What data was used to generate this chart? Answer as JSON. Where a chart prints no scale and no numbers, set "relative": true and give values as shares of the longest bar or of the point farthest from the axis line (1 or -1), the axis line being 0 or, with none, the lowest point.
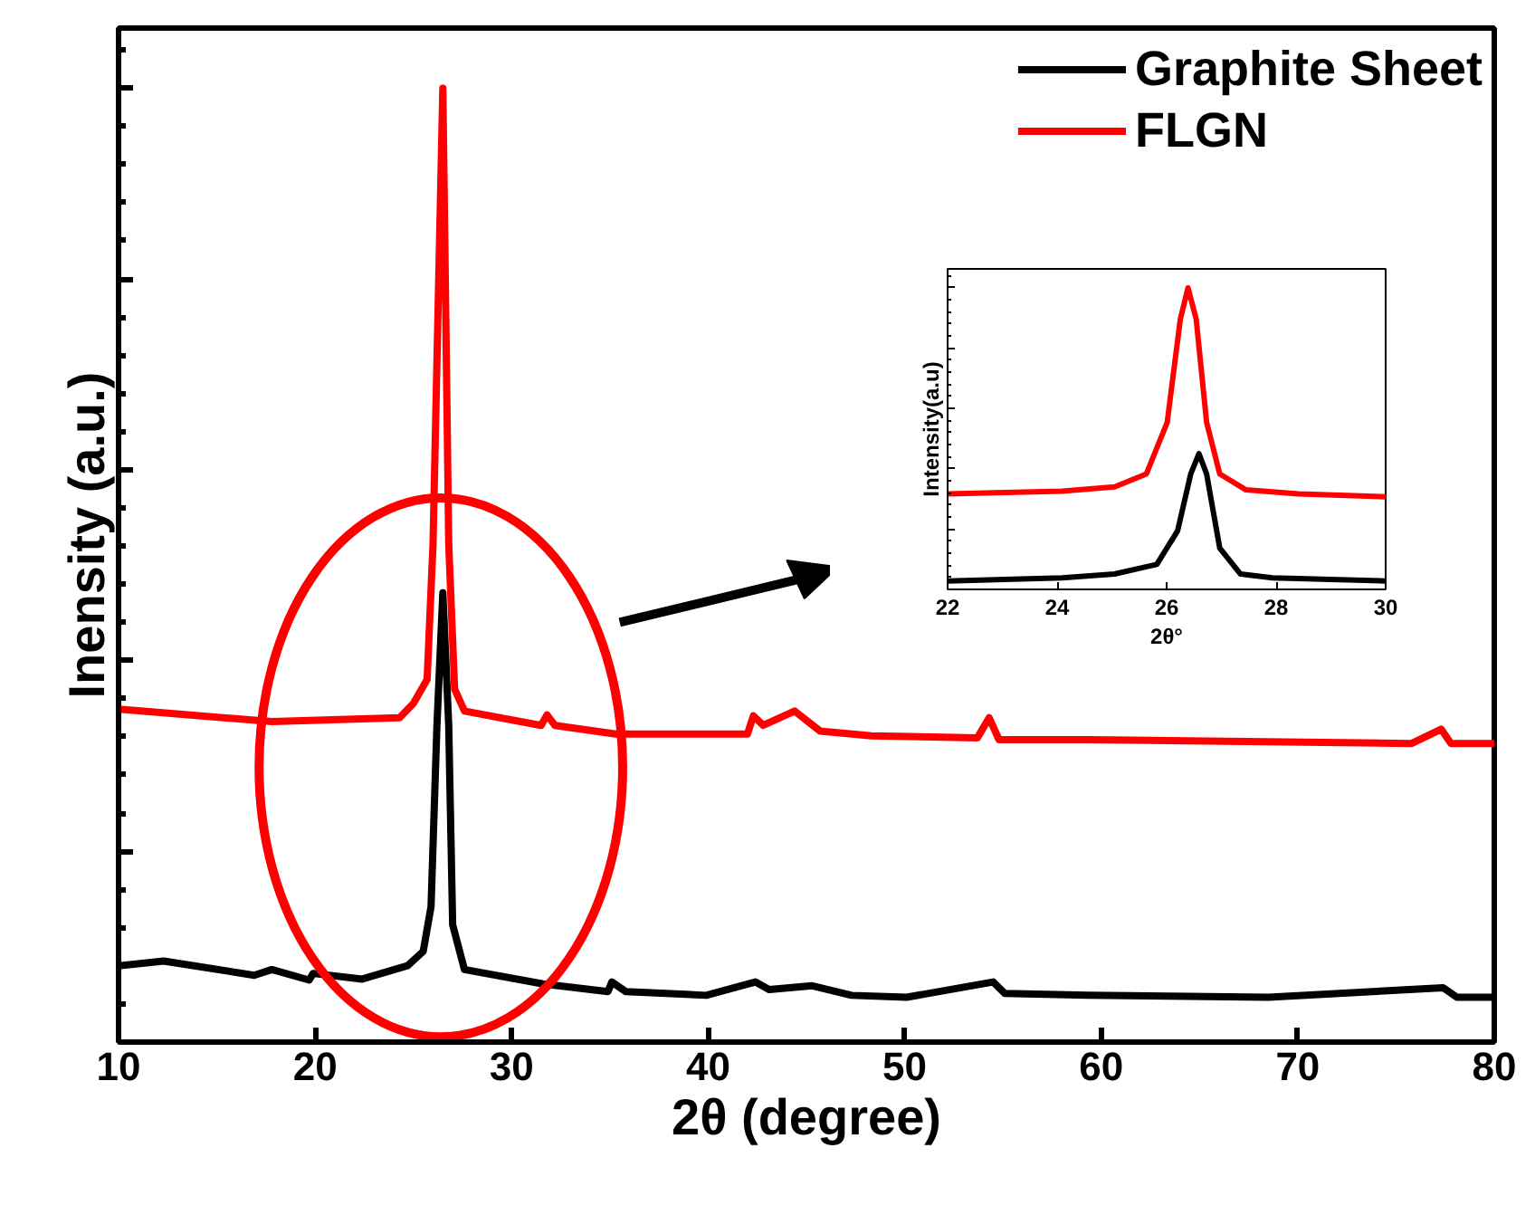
{
  "chart_data": [
    {
      "type": "line",
      "xlabel": "2θ (degree)",
      "ylabel": "Inensity (a.u.)",
      "relative": true,
      "xlim": [
        10,
        80
      ],
      "xticks": [
        10,
        20,
        30,
        40,
        50,
        60,
        70,
        80
      ],
      "tick_labels": "x",
      "legend": "top right",
      "line_style": "solid",
      "series": [
        {
          "name": "Graphite Sheet",
          "color": "#000000",
          "x": [
            10,
            12.3,
            16.9,
            17.8,
            19.7,
            19.9,
            22.4,
            24.7,
            25.5,
            25.9,
            26.2,
            26.5,
            26.8,
            27.0,
            27.6,
            31.6,
            34.9,
            35.1,
            35.8,
            39.9,
            42.4,
            43.1,
            45.3,
            47.3,
            50.1,
            54.5,
            55.1,
            59.3,
            68.5,
            77.4,
            78.1,
            80
          ],
          "values": [
            0.08,
            0.085,
            0.07,
            0.076,
            0.065,
            0.072,
            0.066,
            0.08,
            0.095,
            0.142,
            0.332,
            0.471,
            0.332,
            0.123,
            0.076,
            0.061,
            0.053,
            0.063,
            0.053,
            0.049,
            0.063,
            0.055,
            0.059,
            0.049,
            0.047,
            0.063,
            0.051,
            0.049,
            0.047,
            0.057,
            0.047,
            0.047
          ]
        },
        {
          "name": "FLGN",
          "color": "#ff0000",
          "x": [
            10,
            17.8,
            24.3,
            25.0,
            25.7,
            26.0,
            26.5,
            26.8,
            27.1,
            27.6,
            31.5,
            31.8,
            32.2,
            35.3,
            42.0,
            42.3,
            42.8,
            44.4,
            45.7,
            48.3,
            53.7,
            54.3,
            54.8,
            59.3,
            75.8,
            77.3,
            77.8,
            80
          ],
          "values": [
            0.349,
            0.336,
            0.34,
            0.355,
            0.38,
            0.522,
            1.0,
            0.522,
            0.37,
            0.347,
            0.332,
            0.343,
            0.332,
            0.323,
            0.323,
            0.342,
            0.332,
            0.347,
            0.326,
            0.321,
            0.319,
            0.34,
            0.317,
            0.317,
            0.313,
            0.328,
            0.313,
            0.313
          ]
        }
      ]
    },
    {
      "type": "line",
      "xlabel": "2θ°",
      "ylabel": "Intensity(a.u)",
      "relative": true,
      "xlim": [
        22,
        30
      ],
      "xticks": [
        22,
        24,
        26,
        28,
        30
      ],
      "tick_labels": "x",
      "line_style": "solid",
      "series": [
        {
          "color": "#ff0000",
          "x": [
            22,
            24.09,
            25.05,
            25.63,
            26.01,
            26.25,
            26.39,
            26.54,
            26.73,
            26.97,
            27.45,
            28.41,
            30
          ],
          "values": [
            0.317,
            0.326,
            0.34,
            0.383,
            0.554,
            0.896,
            1.0,
            0.896,
            0.554,
            0.383,
            0.33,
            0.317,
            0.307
          ]
        },
        {
          "color": "#000000",
          "x": [
            22,
            24.09,
            25.05,
            25.82,
            26.2,
            26.44,
            26.59,
            26.73,
            26.97,
            27.35,
            27.93,
            30
          ],
          "values": [
            0.028,
            0.038,
            0.051,
            0.083,
            0.194,
            0.383,
            0.45,
            0.383,
            0.137,
            0.051,
            0.038,
            0.028
          ]
        }
      ]
    }
  ]
}
